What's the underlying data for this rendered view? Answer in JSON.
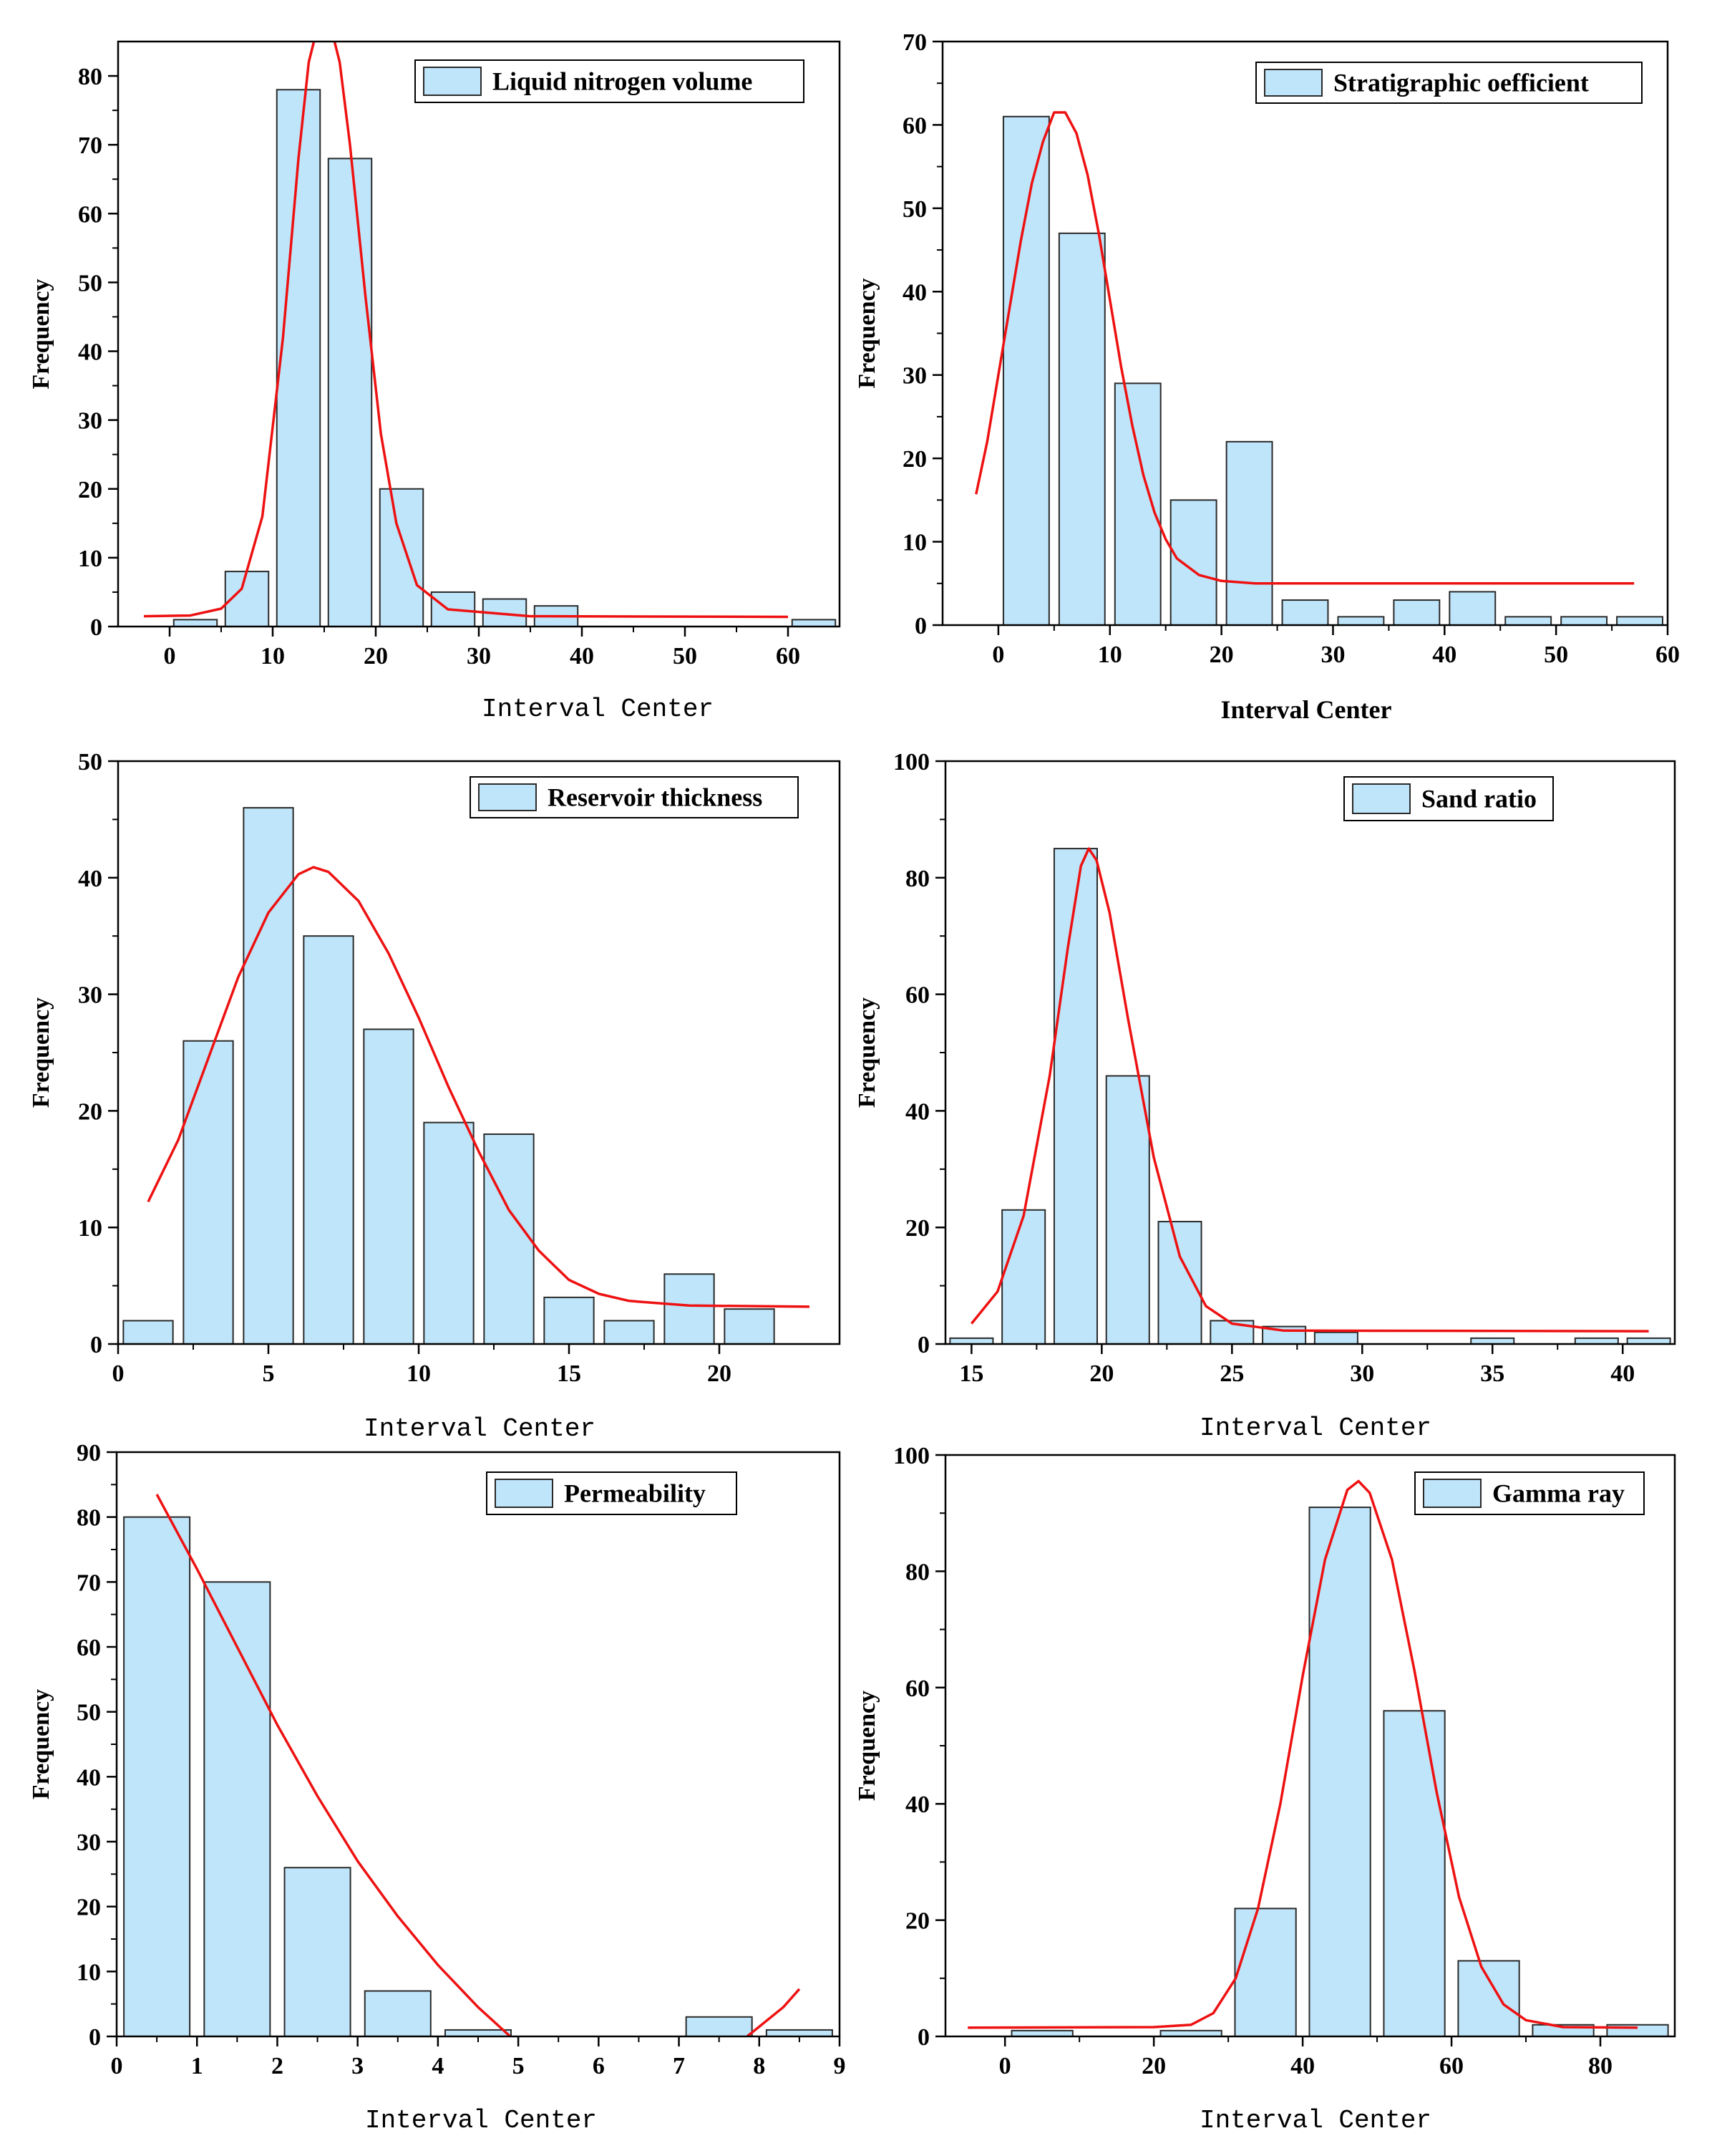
{
  "figure": {
    "description_free": true
  },
  "chart_data": [
    {
      "type": "bar",
      "legend": "Liquid nitrogen volume",
      "xlabel": "Interval Center",
      "ylabel": "Frequency",
      "xlim": [
        -5,
        65
      ],
      "ylim": [
        0,
        85
      ],
      "xticks": [
        0,
        10,
        20,
        30,
        40,
        50,
        60
      ],
      "yticks": [
        0,
        10,
        20,
        30,
        40,
        50,
        60,
        70,
        80
      ],
      "bar_width": 4.2,
      "bars": [
        {
          "x": 2.5,
          "value": 1
        },
        {
          "x": 7.5,
          "value": 8
        },
        {
          "x": 12.5,
          "value": 78
        },
        {
          "x": 17.5,
          "value": 68
        },
        {
          "x": 22.5,
          "value": 20
        },
        {
          "x": 27.5,
          "value": 5
        },
        {
          "x": 32.5,
          "value": 4
        },
        {
          "x": 37.5,
          "value": 3
        },
        {
          "x": 62.5,
          "value": 1
        }
      ],
      "fit_curve": [
        [
          -2.5,
          1.5
        ],
        [
          2,
          1.6
        ],
        [
          5,
          2.6
        ],
        [
          7,
          5.5
        ],
        [
          9,
          16
        ],
        [
          11,
          42
        ],
        [
          12.5,
          68
        ],
        [
          13.5,
          82
        ],
        [
          14.5,
          88
        ],
        [
          15.5,
          88
        ],
        [
          16.5,
          82
        ],
        [
          17.5,
          70
        ],
        [
          19,
          48
        ],
        [
          20.5,
          28
        ],
        [
          22,
          15
        ],
        [
          24,
          6
        ],
        [
          27,
          2.5
        ],
        [
          35,
          1.5
        ],
        [
          60,
          1.4
        ]
      ]
    },
    {
      "type": "bar",
      "legend": "Stratigraphic oefficient",
      "xlabel": "Interval Center",
      "ylabel": "Frequency",
      "xlim": [
        -5,
        60
      ],
      "ylim": [
        0,
        70
      ],
      "xticks": [
        0,
        10,
        20,
        30,
        40,
        50,
        60
      ],
      "yticks": [
        0,
        10,
        20,
        30,
        40,
        50,
        60,
        70
      ],
      "bar_width": 4.1,
      "bars": [
        {
          "x": 2.5,
          "value": 61
        },
        {
          "x": 7.5,
          "value": 47
        },
        {
          "x": 12.5,
          "value": 29
        },
        {
          "x": 17.5,
          "value": 15
        },
        {
          "x": 22.5,
          "value": 22
        },
        {
          "x": 27.5,
          "value": 3
        },
        {
          "x": 32.5,
          "value": 1
        },
        {
          "x": 37.5,
          "value": 3
        },
        {
          "x": 42.5,
          "value": 4
        },
        {
          "x": 47.5,
          "value": 1
        },
        {
          "x": 52.5,
          "value": 1
        },
        {
          "x": 57.5,
          "value": 1
        }
      ],
      "fit_curve": [
        [
          -2,
          15.7
        ],
        [
          -1,
          22
        ],
        [
          0,
          30
        ],
        [
          1,
          38
        ],
        [
          2,
          46
        ],
        [
          3,
          53
        ],
        [
          4,
          58
        ],
        [
          5,
          61.5
        ],
        [
          6,
          61.5
        ],
        [
          7,
          59
        ],
        [
          8,
          54
        ],
        [
          9,
          47
        ],
        [
          10,
          39
        ],
        [
          11,
          31
        ],
        [
          12,
          24
        ],
        [
          13,
          18
        ],
        [
          14,
          13.5
        ],
        [
          15,
          10.3
        ],
        [
          16,
          8
        ],
        [
          18,
          6
        ],
        [
          20,
          5.3
        ],
        [
          23,
          5
        ],
        [
          30,
          5
        ],
        [
          57,
          5
        ]
      ]
    },
    {
      "type": "bar",
      "legend": "Reservoir thickness",
      "xlabel": "Interval Center",
      "ylabel": "Frequency",
      "xlim": [
        0,
        24
      ],
      "ylim": [
        0,
        50
      ],
      "xticks": [
        0,
        5,
        10,
        15,
        20
      ],
      "yticks": [
        0,
        10,
        20,
        30,
        40,
        50
      ],
      "bar_width": 1.65,
      "bars": [
        {
          "x": 1,
          "value": 2
        },
        {
          "x": 3,
          "value": 26
        },
        {
          "x": 5,
          "value": 46
        },
        {
          "x": 7,
          "value": 35
        },
        {
          "x": 9,
          "value": 27
        },
        {
          "x": 11,
          "value": 19
        },
        {
          "x": 13,
          "value": 18
        },
        {
          "x": 15,
          "value": 4
        },
        {
          "x": 17,
          "value": 2
        },
        {
          "x": 19,
          "value": 6
        },
        {
          "x": 21,
          "value": 3
        }
      ],
      "fit_curve": [
        [
          1,
          12.2
        ],
        [
          2,
          17.5
        ],
        [
          3,
          24.5
        ],
        [
          4,
          31.5
        ],
        [
          5,
          37
        ],
        [
          6,
          40.3
        ],
        [
          6.5,
          40.9
        ],
        [
          7,
          40.5
        ],
        [
          8,
          38
        ],
        [
          9,
          33.5
        ],
        [
          10,
          28
        ],
        [
          11,
          22
        ],
        [
          12,
          16.5
        ],
        [
          13,
          11.5
        ],
        [
          14,
          8
        ],
        [
          15,
          5.5
        ],
        [
          16,
          4.3
        ],
        [
          17,
          3.7
        ],
        [
          19,
          3.3
        ],
        [
          23,
          3.2
        ]
      ]
    },
    {
      "type": "bar",
      "legend": "Sand ratio",
      "xlabel": "Interval Center",
      "ylabel": "Frequency",
      "xlim": [
        14,
        42
      ],
      "ylim": [
        0,
        100
      ],
      "xticks": [
        15,
        20,
        25,
        30,
        35,
        40
      ],
      "yticks": [
        0,
        20,
        40,
        60,
        80,
        100
      ],
      "bar_width": 1.65,
      "bars": [
        {
          "x": 15,
          "value": 1
        },
        {
          "x": 17,
          "value": 23
        },
        {
          "x": 19,
          "value": 85
        },
        {
          "x": 21,
          "value": 46
        },
        {
          "x": 23,
          "value": 21
        },
        {
          "x": 25,
          "value": 4
        },
        {
          "x": 27,
          "value": 3
        },
        {
          "x": 29,
          "value": 2
        },
        {
          "x": 35,
          "value": 1
        },
        {
          "x": 39,
          "value": 1
        },
        {
          "x": 41,
          "value": 1
        }
      ],
      "fit_curve": [
        [
          15,
          3.5
        ],
        [
          16,
          9
        ],
        [
          17,
          22
        ],
        [
          18,
          46
        ],
        [
          18.7,
          68
        ],
        [
          19.2,
          82
        ],
        [
          19.5,
          85
        ],
        [
          19.8,
          83
        ],
        [
          20.3,
          74
        ],
        [
          21,
          56
        ],
        [
          22,
          32
        ],
        [
          23,
          15
        ],
        [
          24,
          6.5
        ],
        [
          25,
          3.5
        ],
        [
          27,
          2.3
        ],
        [
          41,
          2.2
        ]
      ]
    },
    {
      "type": "bar",
      "legend": "Permeability",
      "xlabel": "Interval Center",
      "ylabel": "Frequency",
      "xlim": [
        0,
        9
      ],
      "ylim": [
        0,
        90
      ],
      "xticks": [
        0,
        1,
        2,
        3,
        4,
        5,
        6,
        7,
        8,
        9
      ],
      "yticks": [
        0,
        10,
        20,
        30,
        40,
        50,
        60,
        70,
        80,
        90
      ],
      "bar_width": 0.82,
      "bars": [
        {
          "x": 0.5,
          "value": 80
        },
        {
          "x": 1.5,
          "value": 70
        },
        {
          "x": 2.5,
          "value": 26
        },
        {
          "x": 3.5,
          "value": 7
        },
        {
          "x": 4.5,
          "value": 1
        },
        {
          "x": 7.5,
          "value": 3
        },
        {
          "x": 8.5,
          "value": 1
        }
      ],
      "fit_curve_segments": [
        [
          [
            0.5,
            83.5
          ],
          [
            1,
            72
          ],
          [
            1.5,
            60
          ],
          [
            2,
            48
          ],
          [
            2.5,
            37
          ],
          [
            3,
            27
          ],
          [
            3.5,
            18.5
          ],
          [
            4,
            11
          ],
          [
            4.5,
            4.5
          ],
          [
            4.9,
            0
          ]
        ],
        [
          [
            7.85,
            0
          ],
          [
            8,
            1.5
          ],
          [
            8.3,
            4.5
          ],
          [
            8.5,
            7.3
          ]
        ]
      ]
    },
    {
      "type": "bar",
      "legend": "Gamma ray",
      "xlabel": "Interval Center",
      "ylabel": "Frequency",
      "xlim": [
        -8,
        90
      ],
      "ylim": [
        0,
        100
      ],
      "xticks": [
        0,
        20,
        40,
        60,
        80
      ],
      "yticks": [
        0,
        20,
        40,
        60,
        80,
        100
      ],
      "bar_width": 8.2,
      "bars": [
        {
          "x": 5,
          "value": 1
        },
        {
          "x": 25,
          "value": 1
        },
        {
          "x": 35,
          "value": 22
        },
        {
          "x": 45,
          "value": 91
        },
        {
          "x": 55,
          "value": 56
        },
        {
          "x": 65,
          "value": 13
        },
        {
          "x": 75,
          "value": 2
        },
        {
          "x": 85,
          "value": 2
        }
      ],
      "fit_curve": [
        [
          -5,
          1.5
        ],
        [
          20,
          1.6
        ],
        [
          25,
          2
        ],
        [
          28,
          4
        ],
        [
          31,
          10
        ],
        [
          34,
          22
        ],
        [
          37,
          40
        ],
        [
          40,
          62
        ],
        [
          43,
          82
        ],
        [
          46,
          94
        ],
        [
          47.5,
          95.5
        ],
        [
          49,
          93.5
        ],
        [
          52,
          82
        ],
        [
          55,
          63
        ],
        [
          58,
          42
        ],
        [
          61,
          24
        ],
        [
          64,
          12
        ],
        [
          67,
          5.5
        ],
        [
          70,
          2.8
        ],
        [
          75,
          1.6
        ],
        [
          85,
          1.5
        ]
      ]
    }
  ]
}
